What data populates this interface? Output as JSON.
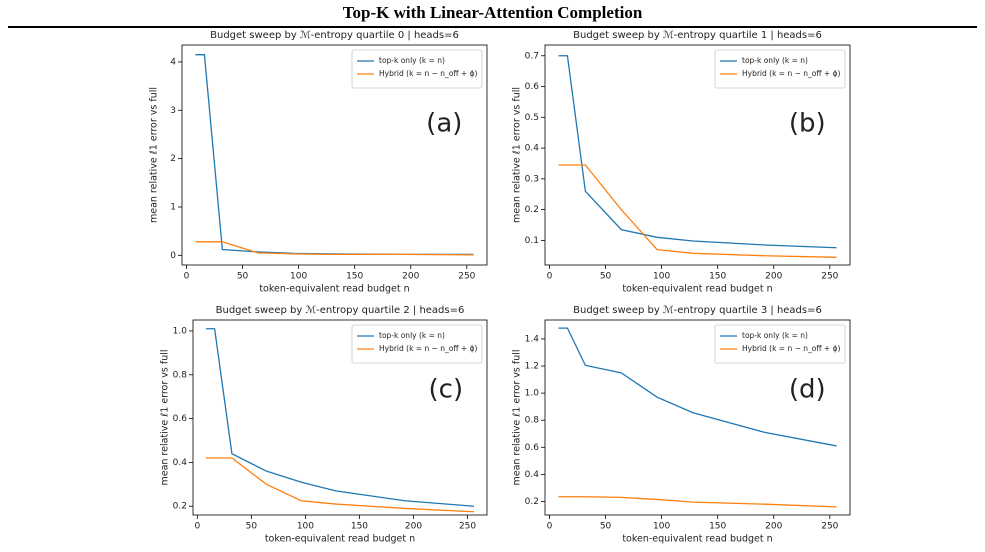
{
  "header": {
    "title": "Top-K with Linear-Attention Completion"
  },
  "chart_data": [
    {
      "type": "line",
      "title": "Budget sweep by ℳ-entropy quartile 0 | heads=6",
      "xlabel": "token-equivalent read budget n",
      "ylabel": "mean relative ℓ1 error vs full",
      "annotation": "(a)",
      "x": [
        8,
        16,
        32,
        64,
        96,
        128,
        192,
        256
      ],
      "series": [
        {
          "name": "top-k only (k = n)",
          "color": "#1f77b4",
          "values": [
            4.15,
            4.15,
            0.12,
            0.07,
            0.04,
            0.03,
            0.02,
            0.02
          ]
        },
        {
          "name": "Hybrid (k = n − n_off + ϕ)",
          "color": "#ff7f0e",
          "values": [
            0.28,
            0.28,
            0.28,
            0.05,
            0.03,
            0.02,
            0.02,
            0.01
          ]
        }
      ],
      "xlim": [
        -4,
        268
      ],
      "xticks": [
        0,
        50,
        100,
        150,
        200,
        250
      ],
      "ylim": [
        -0.2,
        4.35
      ],
      "yticks": [
        0,
        1,
        2,
        3,
        4
      ],
      "legend": "upper right"
    },
    {
      "type": "line",
      "title": "Budget sweep by ℳ-entropy quartile 1 | heads=6",
      "xlabel": "token-equivalent read budget n",
      "ylabel": "mean relative ℓ1 error vs full",
      "annotation": "(b)",
      "x": [
        8,
        16,
        32,
        64,
        96,
        128,
        192,
        256
      ],
      "series": [
        {
          "name": "top-k only (k = n)",
          "color": "#1f77b4",
          "values": [
            0.7,
            0.7,
            0.26,
            0.135,
            0.11,
            0.098,
            0.085,
            0.076
          ]
        },
        {
          "name": "Hybrid (k = n − n_off + ϕ)",
          "color": "#ff7f0e",
          "values": [
            0.345,
            0.345,
            0.345,
            0.2,
            0.07,
            0.058,
            0.05,
            0.045
          ]
        }
      ],
      "xlim": [
        -4,
        268
      ],
      "xticks": [
        0,
        50,
        100,
        150,
        200,
        250
      ],
      "ylim": [
        0.02,
        0.735
      ],
      "yticks": [
        0.1,
        0.2,
        0.3,
        0.4,
        0.5,
        0.6,
        0.7
      ],
      "legend": "upper right"
    },
    {
      "type": "line",
      "title": "Budget sweep by ℳ-entropy quartile 2 | heads=6",
      "xlabel": "token-equivalent read budget n",
      "ylabel": "mean relative ℓ1 error vs full",
      "annotation": "(c)",
      "x": [
        8,
        16,
        32,
        64,
        96,
        128,
        192,
        256
      ],
      "series": [
        {
          "name": "top-k only (k = n)",
          "color": "#1f77b4",
          "values": [
            1.01,
            1.01,
            0.44,
            0.36,
            0.31,
            0.27,
            0.225,
            0.2
          ]
        },
        {
          "name": "Hybrid (k = n − n_off + ϕ)",
          "color": "#ff7f0e",
          "values": [
            0.42,
            0.42,
            0.42,
            0.3,
            0.225,
            0.21,
            0.19,
            0.175
          ]
        }
      ],
      "xlim": [
        -4,
        268
      ],
      "xticks": [
        0,
        50,
        100,
        150,
        200,
        250
      ],
      "ylim": [
        0.16,
        1.05
      ],
      "yticks": [
        0.2,
        0.4,
        0.6,
        0.8,
        {
          "value": 1,
          "label": "1.0"
        }
      ],
      "legend": "upper right"
    },
    {
      "type": "line",
      "title": "Budget sweep by ℳ-entropy quartile 3 | heads=6",
      "xlabel": "token-equivalent read budget n",
      "ylabel": "mean relative ℓ1 error vs full",
      "annotation": "(d)",
      "x": [
        8,
        16,
        32,
        64,
        96,
        128,
        192,
        256
      ],
      "series": [
        {
          "name": "top-k only (k = n)",
          "color": "#1f77b4",
          "values": [
            1.48,
            1.48,
            1.205,
            1.15,
            0.97,
            0.855,
            0.71,
            0.61
          ]
        },
        {
          "name": "Hybrid (k = n − n_off + ϕ)",
          "color": "#ff7f0e",
          "values": [
            0.235,
            0.235,
            0.235,
            0.23,
            0.215,
            0.195,
            0.18,
            0.16
          ]
        }
      ],
      "xlim": [
        -4,
        268
      ],
      "xticks": [
        0,
        50,
        100,
        150,
        200,
        250
      ],
      "ylim": [
        0.1,
        1.54
      ],
      "yticks": [
        0.2,
        0.4,
        0.6,
        0.8,
        {
          "value": 1,
          "label": "1.0"
        },
        1.2,
        1.4
      ],
      "legend": "upper right"
    }
  ]
}
